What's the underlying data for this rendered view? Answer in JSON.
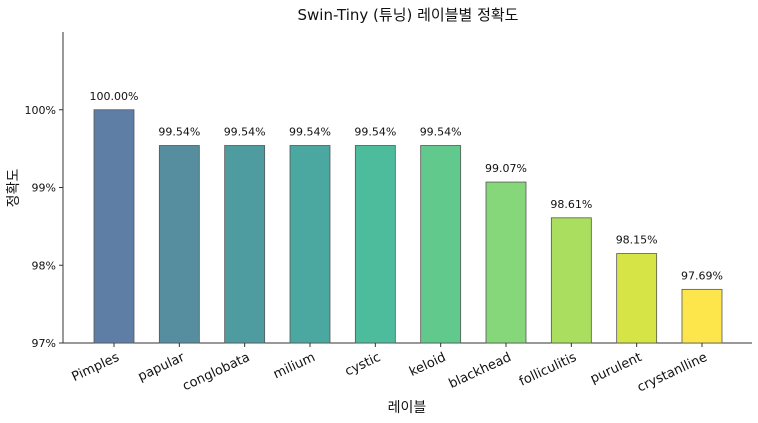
{
  "chart_data": {
    "type": "bar",
    "title": "Swin-Tiny (튜닝) 레이블별 정확도",
    "xlabel": "레이블",
    "ylabel": "정확도",
    "categories": [
      "Pimples",
      "papular",
      "conglobata",
      "milium",
      "cystic",
      "keloid",
      "blackhead",
      "folliculitis",
      "purulent",
      "crystanlline"
    ],
    "values": [
      100.0,
      99.54,
      99.54,
      99.54,
      99.54,
      99.54,
      99.07,
      98.61,
      98.15,
      97.69
    ],
    "data_labels": [
      "100.00%",
      "99.54%",
      "99.54%",
      "99.54%",
      "99.54%",
      "99.54%",
      "99.07%",
      "98.61%",
      "98.15%",
      "97.69%"
    ],
    "yticks": [
      97,
      98,
      99,
      100
    ],
    "ytick_labels": [
      "97%",
      "98%",
      "99%",
      "100%"
    ],
    "ylim": [
      97,
      101
    ],
    "grid": false,
    "colors": [
      "#5e7ea6",
      "#568d9f",
      "#4f9ca0",
      "#4aa8a0",
      "#4dbc9c",
      "#62c98c",
      "#85d77a",
      "#a9de5e",
      "#d6e545",
      "#fde64c"
    ]
  }
}
